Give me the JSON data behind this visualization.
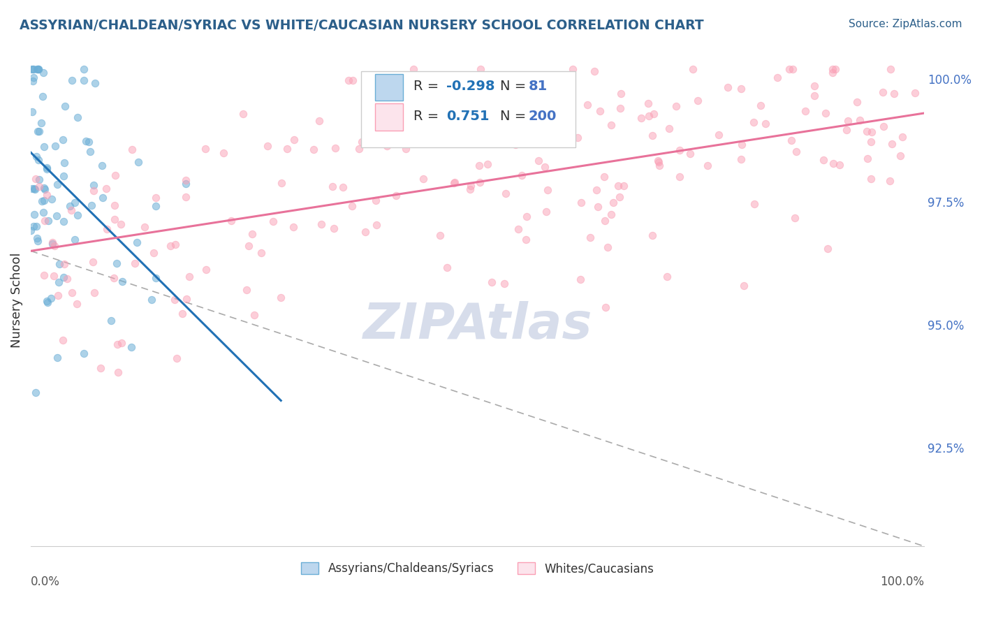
{
  "title": "ASSYRIAN/CHALDEAN/SYRIAC VS WHITE/CAUCASIAN NURSERY SCHOOL CORRELATION CHART",
  "source_text": "Source: ZipAtlas.com",
  "ylabel": "Nursery School",
  "legend_label1": "Assyrians/Chaldeans/Syriacs",
  "legend_label2": "Whites/Caucasians",
  "R1": -0.298,
  "N1": 81,
  "R2": 0.751,
  "N2": 200,
  "blue_color": "#6baed6",
  "blue_fill": "#bdd7ee",
  "pink_color": "#fa9fb5",
  "pink_fill": "#fce4ec",
  "blue_line_color": "#2171b5",
  "pink_line_color": "#e8729a",
  "title_color": "#2c5f8a",
  "source_color": "#2c5f8a",
  "right_ytick_color": "#4472c4",
  "legend_r_color": "#2171b5",
  "legend_n_color": "#4472c4",
  "background_color": "#ffffff",
  "grid_color": "#c8c8c8",
  "watermark_color": "#d0d8e8",
  "xmin": 0.0,
  "xmax": 1.0,
  "ymin": 0.905,
  "ymax": 1.005,
  "right_yticks": [
    1.0,
    0.975,
    0.95,
    0.925
  ],
  "right_ytick_labels": [
    "100.0%",
    "97.5%",
    "95.0%",
    "92.5%"
  ]
}
